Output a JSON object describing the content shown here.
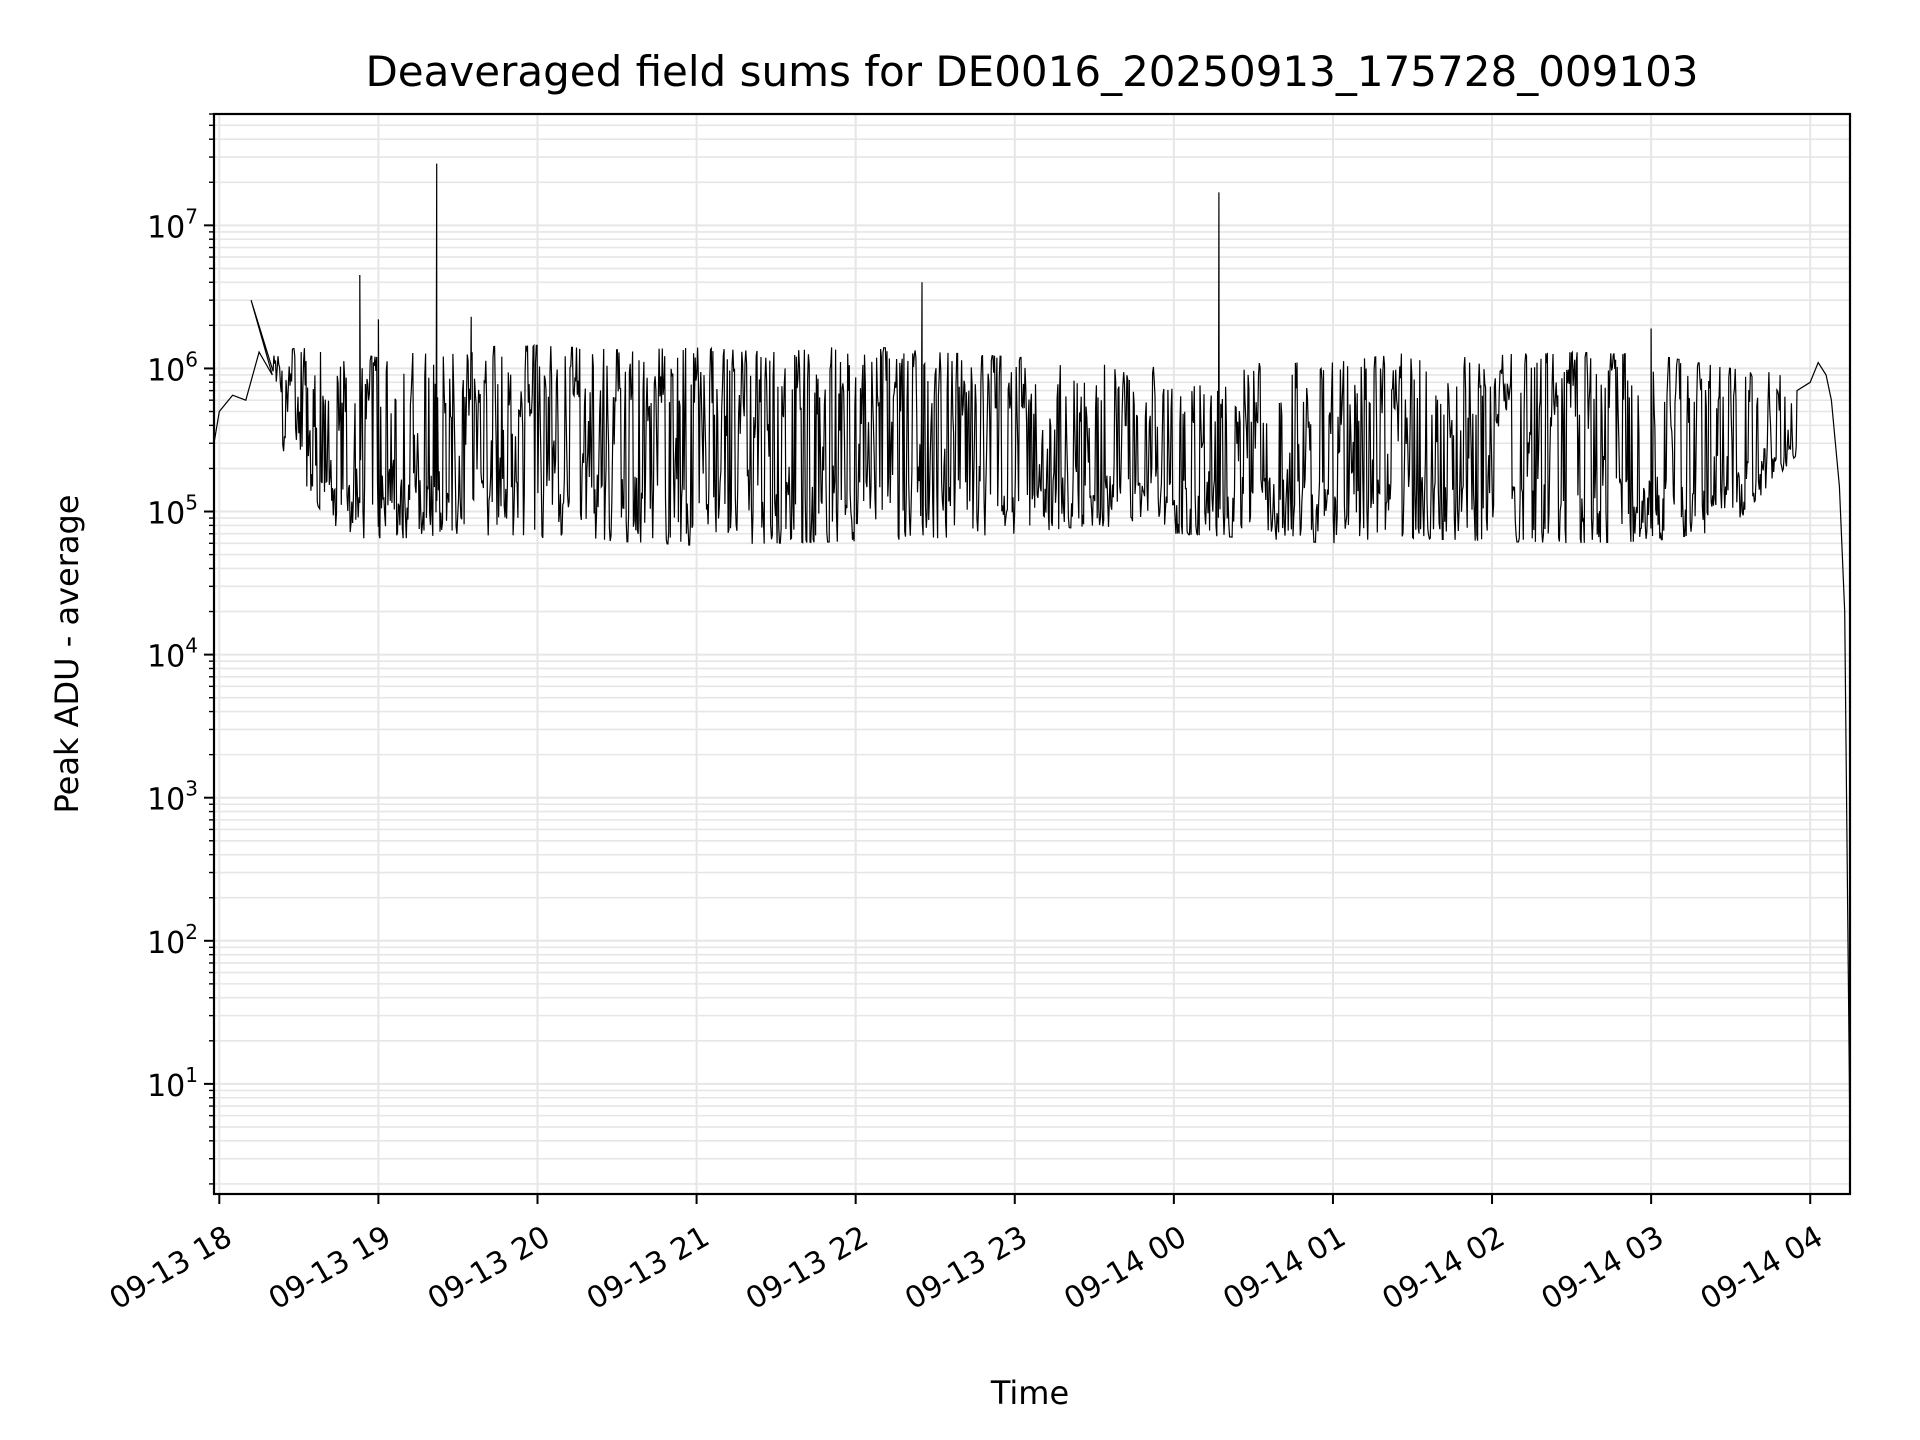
{
  "chart_data": {
    "type": "line",
    "title": "Deaveraged field sums for DE0016_20250913_175728_009103",
    "xlabel": "Time",
    "ylabel": "Peak ADU - average",
    "yscale": "log",
    "ylim": [
      1.7,
      60000000
    ],
    "xlim": [
      "2025-09-13 17:58",
      "2025-09-14 04:15"
    ],
    "grid": true,
    "line_color": "#000000",
    "grid_color": "#e6e6e6",
    "x_ticks": [
      {
        "t": "2025-09-13 18:00",
        "label": "09-13 18"
      },
      {
        "t": "2025-09-13 19:00",
        "label": "09-13 19"
      },
      {
        "t": "2025-09-13 20:00",
        "label": "09-13 20"
      },
      {
        "t": "2025-09-13 21:00",
        "label": "09-13 21"
      },
      {
        "t": "2025-09-13 22:00",
        "label": "09-13 22"
      },
      {
        "t": "2025-09-13 23:00",
        "label": "09-13 23"
      },
      {
        "t": "2025-09-14 00:00",
        "label": "09-14 00"
      },
      {
        "t": "2025-09-14 01:00",
        "label": "09-14 01"
      },
      {
        "t": "2025-09-14 02:00",
        "label": "09-14 02"
      },
      {
        "t": "2025-09-14 03:00",
        "label": "09-14 03"
      },
      {
        "t": "2025-09-14 04:00",
        "label": "09-14 04"
      }
    ],
    "y_ticks": [
      {
        "value": 10,
        "base": "10",
        "exp": "1"
      },
      {
        "value": 100,
        "base": "10",
        "exp": "2"
      },
      {
        "value": 1000,
        "base": "10",
        "exp": "3"
      },
      {
        "value": 10000,
        "base": "10",
        "exp": "4"
      },
      {
        "value": 100000,
        "base": "10",
        "exp": "5"
      },
      {
        "value": 1000000,
        "base": "10",
        "exp": "6"
      },
      {
        "value": 10000000,
        "base": "10",
        "exp": "7"
      }
    ],
    "series": [
      {
        "band_lower": [
          [
            "2025-09-13 18:20",
            350000
          ],
          [
            "2025-09-13 18:30",
            180000
          ],
          [
            "2025-09-13 18:40",
            90000
          ],
          [
            "2025-09-13 18:50",
            65000
          ],
          [
            "2025-09-13 19:10",
            65000
          ],
          [
            "2025-09-13 19:30",
            70000
          ],
          [
            "2025-09-13 20:00",
            65000
          ],
          [
            "2025-09-13 20:30",
            62000
          ],
          [
            "2025-09-13 21:00",
            58000
          ],
          [
            "2025-09-13 21:30",
            60000
          ],
          [
            "2025-09-13 22:00",
            62000
          ],
          [
            "2025-09-13 22:30",
            65000
          ],
          [
            "2025-09-13 23:00",
            70000
          ],
          [
            "2025-09-13 23:30",
            80000
          ],
          [
            "2025-09-14 00:00",
            70000
          ],
          [
            "2025-09-14 00:30",
            65000
          ],
          [
            "2025-09-14 01:00",
            60000
          ],
          [
            "2025-09-14 01:30",
            65000
          ],
          [
            "2025-09-14 02:00",
            62000
          ],
          [
            "2025-09-14 02:30",
            60000
          ],
          [
            "2025-09-14 03:00",
            62000
          ],
          [
            "2025-09-14 03:30",
            75000
          ],
          [
            "2025-09-14 03:55",
            250000
          ]
        ],
        "band_upper": [
          [
            "2025-09-13 18:20",
            1300000
          ],
          [
            "2025-09-13 18:30",
            1400000
          ],
          [
            "2025-09-13 19:00",
            1200000
          ],
          [
            "2025-09-13 19:30",
            1400000
          ],
          [
            "2025-09-13 20:00",
            1450000
          ],
          [
            "2025-09-13 20:30",
            1350000
          ],
          [
            "2025-09-13 21:00",
            1400000
          ],
          [
            "2025-09-13 21:30",
            1300000
          ],
          [
            "2025-09-13 22:00",
            1450000
          ],
          [
            "2025-09-13 22:30",
            1300000
          ],
          [
            "2025-09-13 23:00",
            1200000
          ],
          [
            "2025-09-13 23:30",
            1100000
          ],
          [
            "2025-09-14 00:00",
            1000000
          ],
          [
            "2025-09-14 00:30",
            1100000
          ],
          [
            "2025-09-14 01:00",
            1100000
          ],
          [
            "2025-09-14 01:30",
            1300000
          ],
          [
            "2025-09-14 02:00",
            1250000
          ],
          [
            "2025-09-14 02:30",
            1300000
          ],
          [
            "2025-09-14 03:00",
            1250000
          ],
          [
            "2025-09-14 03:30",
            1000000
          ],
          [
            "2025-09-14 03:55",
            900000
          ]
        ],
        "fixed_points": [
          [
            "2025-09-13 17:58",
            300000
          ],
          [
            "2025-09-13 18:00",
            500000
          ],
          [
            "2025-09-13 18:05",
            650000
          ],
          [
            "2025-09-13 18:10",
            600000
          ],
          [
            "2025-09-13 18:15",
            1300000
          ],
          [
            "2025-09-13 18:20",
            900000
          ],
          [
            "2025-09-14 03:55",
            700000
          ],
          [
            "2025-09-14 04:00",
            800000
          ],
          [
            "2025-09-14 04:03",
            1100000
          ],
          [
            "2025-09-14 04:06",
            900000
          ],
          [
            "2025-09-14 04:08",
            600000
          ],
          [
            "2025-09-14 04:11",
            150000
          ],
          [
            "2025-09-14 04:13",
            20000
          ],
          [
            "2025-09-14 04:15",
            3.8
          ]
        ],
        "spikes": [
          [
            "2025-09-13 18:12",
            3000000
          ],
          [
            "2025-09-13 18:53",
            4500000
          ],
          [
            "2025-09-13 19:00",
            2200000
          ],
          [
            "2025-09-13 19:22",
            27000000
          ],
          [
            "2025-09-13 19:35",
            2300000
          ],
          [
            "2025-09-13 22:25",
            4000000
          ],
          [
            "2025-09-14 00:17",
            17000000
          ],
          [
            "2025-09-14 03:00",
            1900000
          ]
        ]
      }
    ]
  }
}
